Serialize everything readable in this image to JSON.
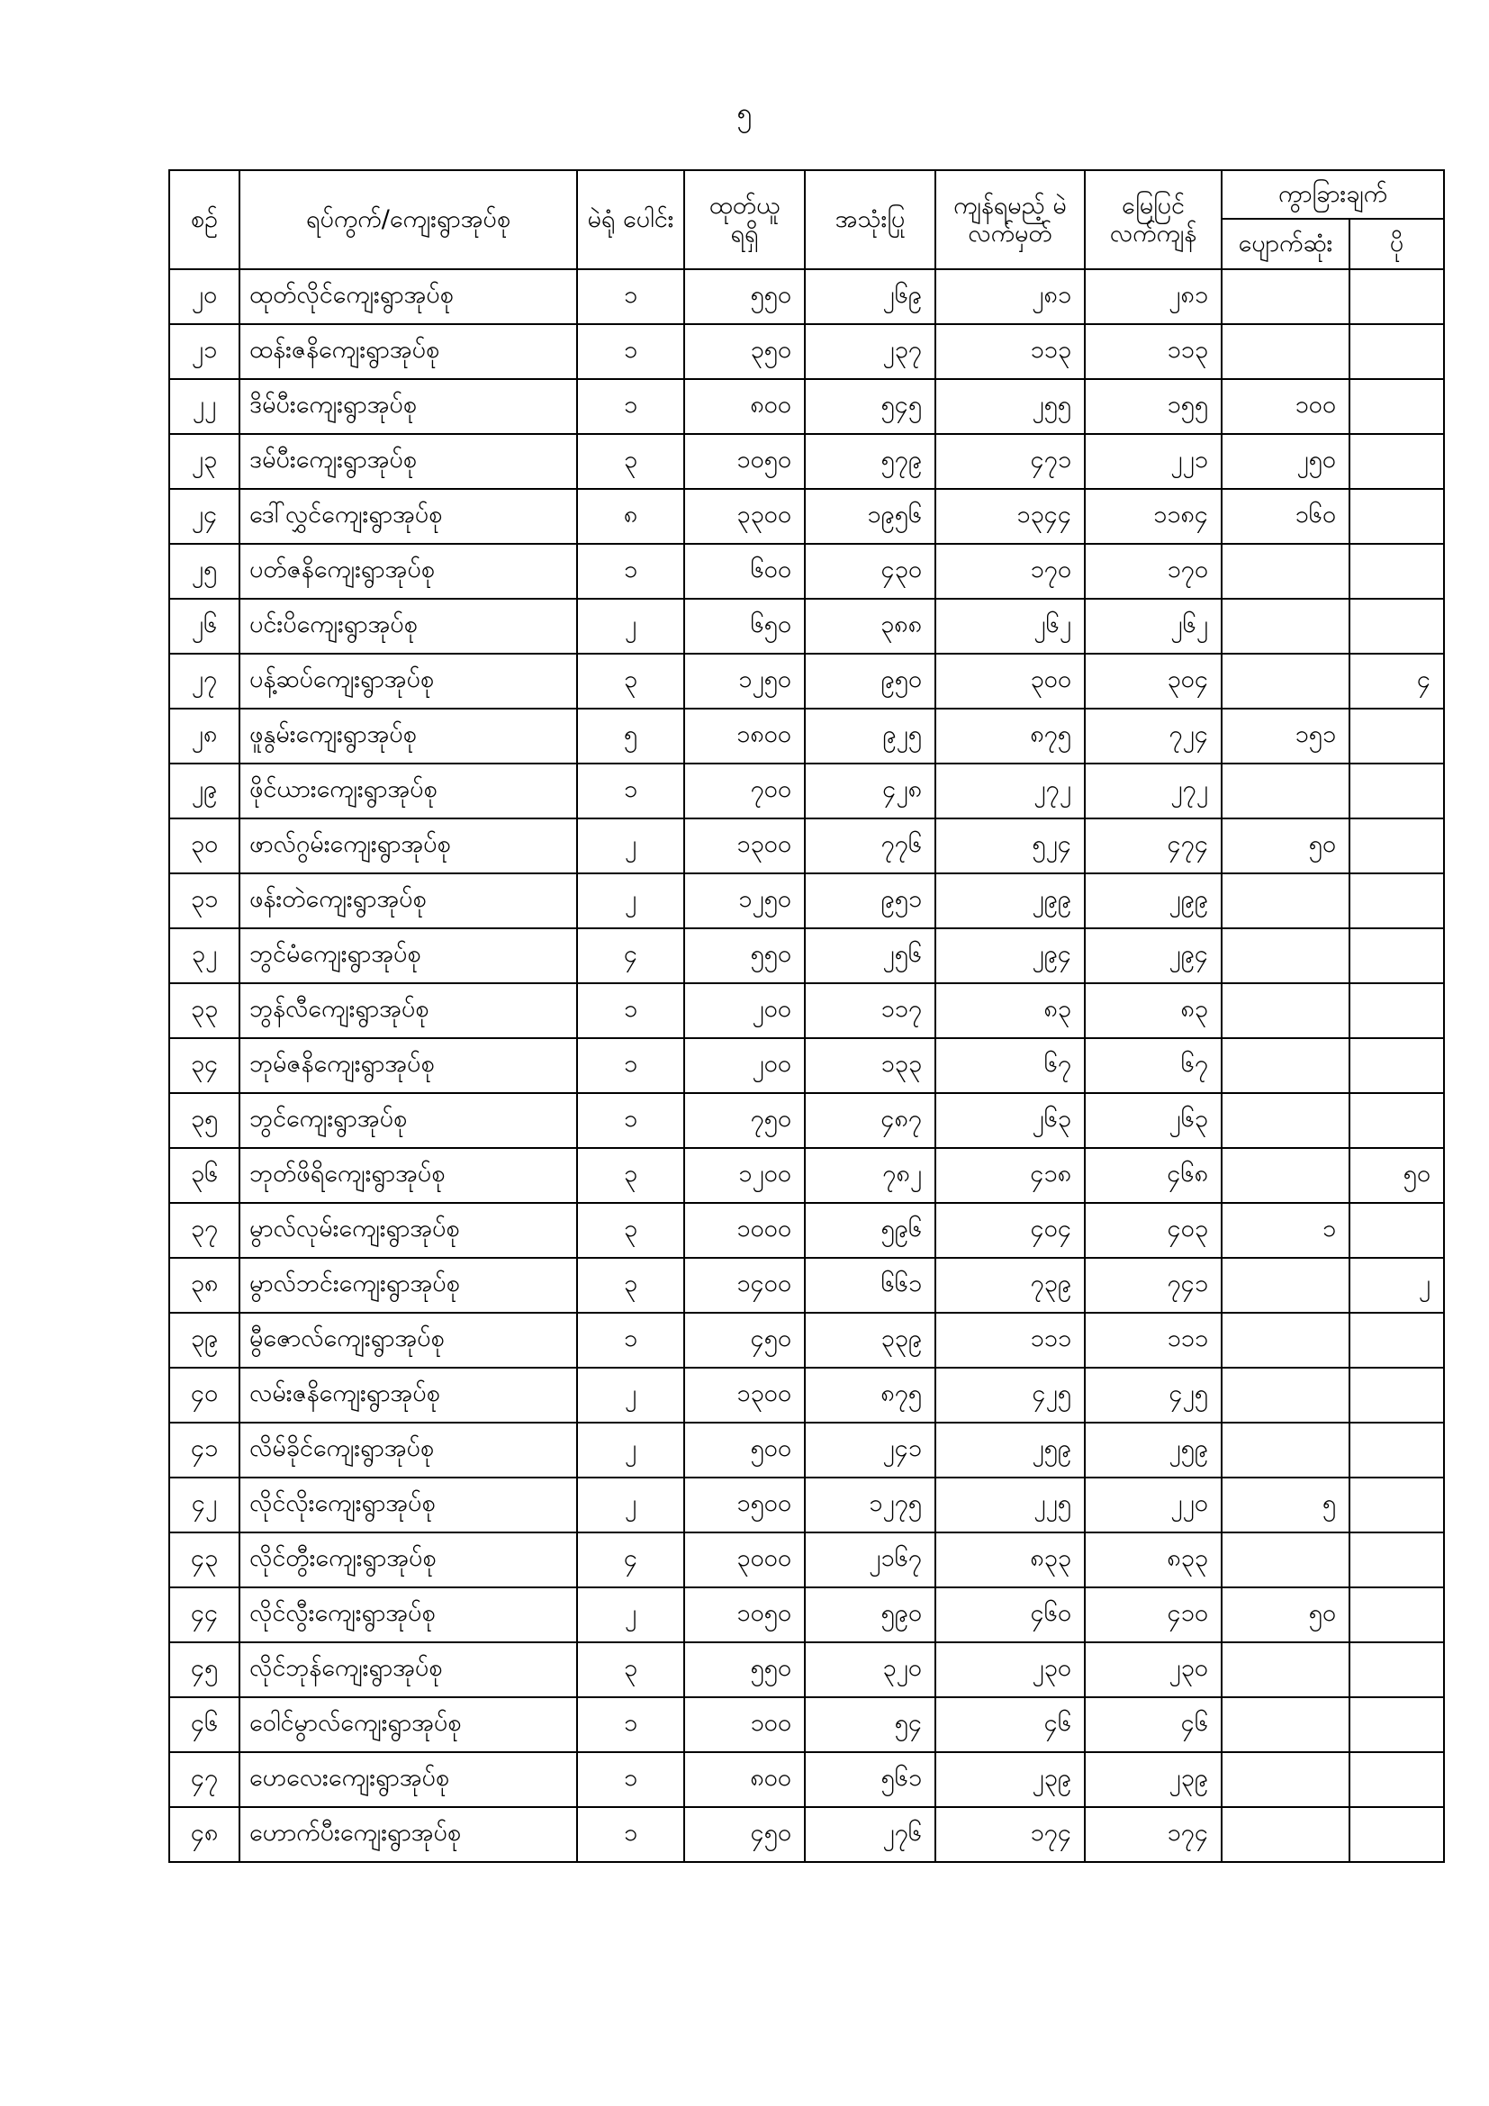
{
  "page_number": "၅",
  "headers": {
    "serial": "စဉ်",
    "ward_village": "ရပ်ကွက်/ကျေးရွာအုပ်စု",
    "polling_stations": "မဲရုံ ပေါင်း",
    "received": "ထုတ်ယူ ရရှိ",
    "used": "အသုံးပြု",
    "ballots_remaining": "ကျန်ရမည့် မဲလက်မှတ်",
    "ground_remaining": "မြေပြင် လက်ကျန်",
    "difference": "ကွာခြားချက်",
    "lost": "ပျောက်ဆုံး",
    "excess": "ပို"
  },
  "rows": [
    [
      "၂၀",
      "ထုတ်လိုင်ကျေးရွာအုပ်စု",
      "၁",
      "၅၅၀",
      "၂၆၉",
      "၂၈၁",
      "၂၈၁",
      "",
      ""
    ],
    [
      "၂၁",
      "ထန်းဇနိကျေးရွာအုပ်စု",
      "၁",
      "၃၅၀",
      "၂၃၇",
      "၁၁၃",
      "၁၁၃",
      "",
      ""
    ],
    [
      "၂၂",
      "ဒိမ်ပီးကျေးရွာအုပ်စု",
      "၁",
      "၈၀၀",
      "၅၄၅",
      "၂၅၅",
      "၁၅၅",
      "၁၀၀",
      ""
    ],
    [
      "၂၃",
      "ဒမ်ပီးကျေးရွာအုပ်စု",
      "၃",
      "၁၀၅၀",
      "၅၇၉",
      "၄၇၁",
      "၂၂၁",
      "၂၅၀",
      ""
    ],
    [
      "၂၄",
      "ဒေါ်လွှင်ကျေးရွာအုပ်စု",
      "၈",
      "၃၃၀၀",
      "၁၉၅၆",
      "၁၃၄၄",
      "၁၁၈၄",
      "၁၆၀",
      ""
    ],
    [
      "၂၅",
      "ပတ်ဇနိကျေးရွာအုပ်စု",
      "၁",
      "၆၀၀",
      "၄၃၀",
      "၁၇၀",
      "၁၇၀",
      "",
      ""
    ],
    [
      "၂၆",
      "ပင်းပိကျေးရွာအုပ်စု",
      "၂",
      "၆၅၀",
      "၃၈၈",
      "၂၆၂",
      "၂၆၂",
      "",
      ""
    ],
    [
      "၂၇",
      "ပန့်ဆပ်ကျေးရွာအုပ်စု",
      "၃",
      "၁၂၅၀",
      "၉၅၀",
      "၃၀၀",
      "၃၀၄",
      "",
      "၄"
    ],
    [
      "၂၈",
      "ဖူနွမ်းကျေးရွာအုပ်စု",
      "၅",
      "၁၈၀၀",
      "၉၂၅",
      "၈၇၅",
      "၇၂၄",
      "၁၅၁",
      ""
    ],
    [
      "၂၉",
      "ဖိုင်ယားကျေးရွာအုပ်စု",
      "၁",
      "၇၀၀",
      "၄၂၈",
      "၂၇၂",
      "၂၇၂",
      "",
      ""
    ],
    [
      "၃၀",
      "ဖာလ်ဂွမ်းကျေးရွာအုပ်စု",
      "၂",
      "၁၃၀၀",
      "၇၇၆",
      "၅၂၄",
      "၄၇၄",
      "၅၀",
      ""
    ],
    [
      "၃၁",
      "ဖန်းတဲကျေးရွာအုပ်စု",
      "၂",
      "၁၂၅၀",
      "၉၅၁",
      "၂၉၉",
      "၂၉၉",
      "",
      ""
    ],
    [
      "၃၂",
      "ဘွင်မံကျေးရွာအုပ်စု",
      "၄",
      "၅၅၀",
      "၂၅၆",
      "၂၉၄",
      "၂၉၄",
      "",
      ""
    ],
    [
      "၃၃",
      "ဘွန်လီကျေးရွာအုပ်စု",
      "၁",
      "၂၀၀",
      "၁၁၇",
      "၈၃",
      "၈၃",
      "",
      ""
    ],
    [
      "၃၄",
      "ဘုမ်ဇနိကျေးရွာအုပ်စု",
      "၁",
      "၂၀၀",
      "၁၃၃",
      "၆၇",
      "၆၇",
      "",
      ""
    ],
    [
      "၃၅",
      "ဘွင်ကျေးရွာအုပ်စု",
      "၁",
      "၇၅၀",
      "၄၈၇",
      "၂၆၃",
      "၂၆၃",
      "",
      ""
    ],
    [
      "၃၆",
      "ဘုတ်ဖိရိကျေးရွာအုပ်စု",
      "၃",
      "၁၂၀၀",
      "၇၈၂",
      "၄၁၈",
      "၄၆၈",
      "",
      "၅၀"
    ],
    [
      "၃၇",
      "မွာလ်လုမ်းကျေးရွာအုပ်စု",
      "၃",
      "၁၀၀၀",
      "၅၉၆",
      "၄၀၄",
      "၄၀၃",
      "၁",
      ""
    ],
    [
      "၃၈",
      "မွာလ်ဘင်းကျေးရွာအုပ်စု",
      "၃",
      "၁၄၀၀",
      "၆၆၁",
      "၇၃၉",
      "၇၄၁",
      "",
      "၂"
    ],
    [
      "၃၉",
      "မွီဇောလ်ကျေးရွာအုပ်စု",
      "၁",
      "၄၅၀",
      "၃၃၉",
      "၁၁၁",
      "၁၁၁",
      "",
      ""
    ],
    [
      "၄၀",
      "လမ်းဇနိကျေးရွာအုပ်စု",
      "၂",
      "၁၃၀၀",
      "၈၇၅",
      "၄၂၅",
      "၄၂၅",
      "",
      ""
    ],
    [
      "၄၁",
      "လိမ်ခိုင်ကျေးရွာအုပ်စု",
      "၂",
      "၅၀၀",
      "၂၄၁",
      "၂၅၉",
      "၂၅၉",
      "",
      ""
    ],
    [
      "၄၂",
      "လိုင်လိုးကျေးရွာအုပ်စု",
      "၂",
      "၁၅၀၀",
      "၁၂၇၅",
      "၂၂၅",
      "၂၂၀",
      "၅",
      ""
    ],
    [
      "၄၃",
      "လိုင်တွီးကျေးရွာအုပ်စု",
      "၄",
      "၃၀၀၀",
      "၂၁၆၇",
      "၈၃၃",
      "၈၃၃",
      "",
      ""
    ],
    [
      "၄၄",
      "လိုင်လွီးကျေးရွာအုပ်စု",
      "၂",
      "၁၀၅၀",
      "၅၉၀",
      "၄၆၀",
      "၄၁၀",
      "၅၀",
      ""
    ],
    [
      "၄၅",
      "လိုင်ဘုန်ကျေးရွာအုပ်စု",
      "၃",
      "၅၅၀",
      "၃၂၀",
      "၂၃၀",
      "၂၃၀",
      "",
      ""
    ],
    [
      "၄၆",
      "ဝေါင်မွာလ်ကျေးရွာအုပ်စု",
      "၁",
      "၁၀၀",
      "၅၄",
      "၄၆",
      "၄၆",
      "",
      ""
    ],
    [
      "၄၇",
      "ဟေလေးကျေးရွာအုပ်စု",
      "၁",
      "၈၀၀",
      "၅၆၁",
      "၂၃၉",
      "၂၃၉",
      "",
      ""
    ],
    [
      "၄၈",
      "ဟောက်ပီးကျေးရွာအုပ်စု",
      "၁",
      "၄၅၀",
      "၂၇၆",
      "၁၇၄",
      "၁၇၄",
      "",
      ""
    ]
  ]
}
